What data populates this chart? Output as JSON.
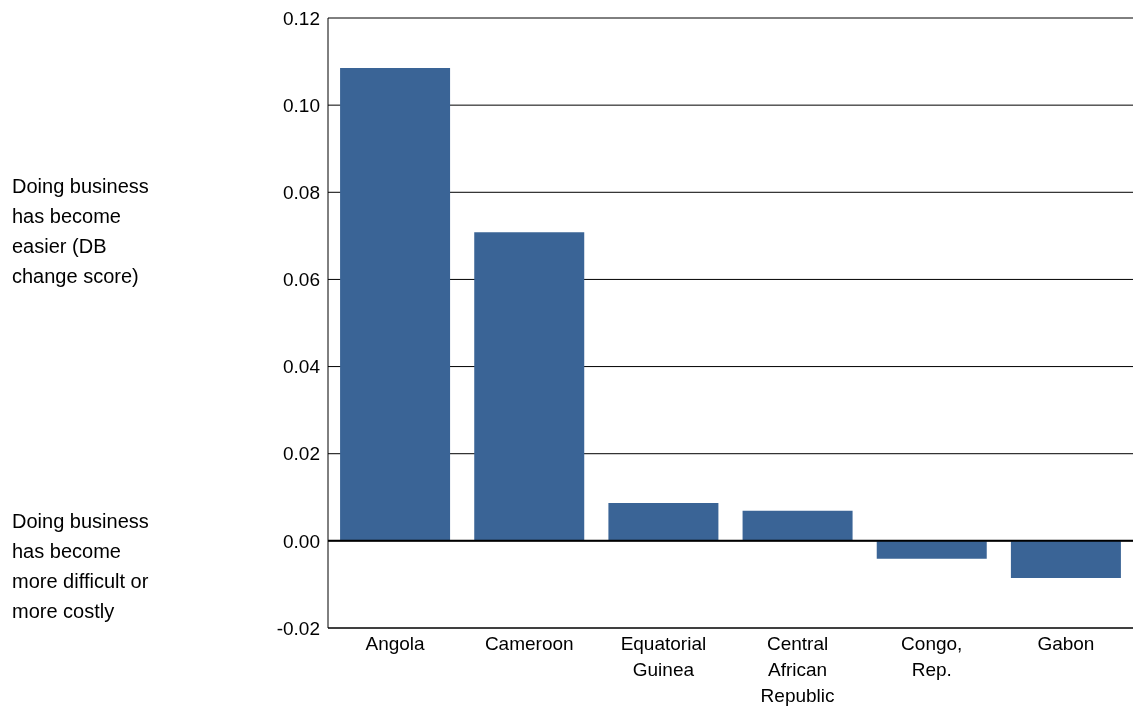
{
  "chart_data": {
    "type": "bar",
    "categories": [
      "Angola",
      "Cameroon",
      "Equatorial Guinea",
      "Central African Republic",
      "Congo, Rep.",
      "Gabon"
    ],
    "values": [
      0.1085,
      0.0708,
      0.0087,
      0.0069,
      -0.0041,
      -0.0085
    ],
    "color": "#3a6496",
    "ylim": [
      -0.02,
      0.12
    ],
    "yticks": [
      {
        "value": -0.02,
        "label": "-0.02"
      },
      {
        "value": 0,
        "label": "0.00"
      },
      {
        "value": 0.02,
        "label": "0.02"
      },
      {
        "value": 0.04,
        "label": "0.04"
      },
      {
        "value": 0.06,
        "label": "0.06"
      },
      {
        "value": 0.08,
        "label": "0.08"
      },
      {
        "value": 0.1,
        "label": "0.10"
      },
      {
        "value": 0.12,
        "label": "0.12"
      }
    ],
    "grid": "y",
    "annotations": [
      "Doing business has become easier (DB change score)",
      "Doing business has become more difficult or more costly"
    ]
  }
}
